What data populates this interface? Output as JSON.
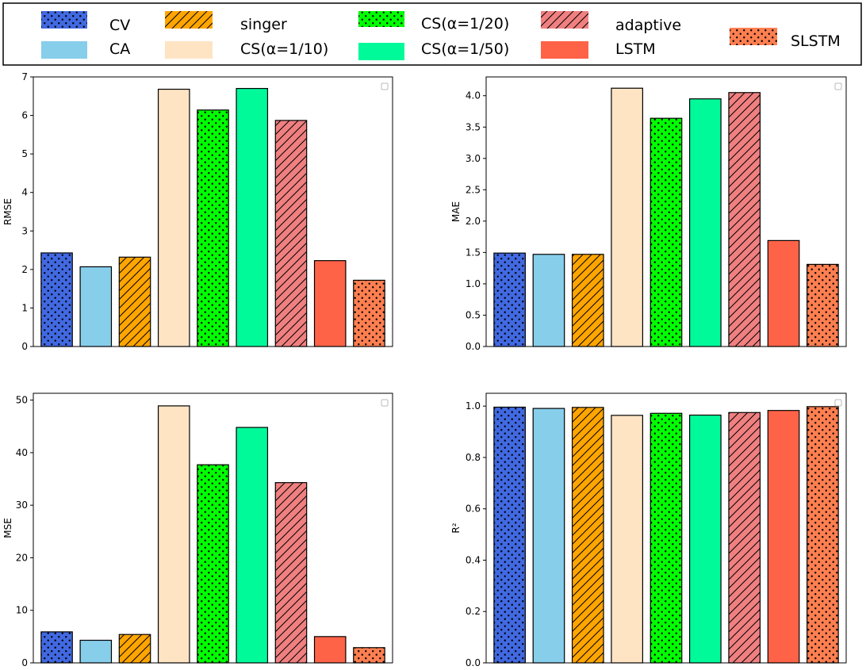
{
  "legend": {
    "items": [
      {
        "label": "CV",
        "color": "#4169E1",
        "pattern": "dots"
      },
      {
        "label": "CA",
        "color": "#87CEEB",
        "pattern": "none"
      },
      {
        "label": "singer",
        "color": "#FFA500",
        "pattern": "hatch"
      },
      {
        "label": "CS(α=1/10)",
        "color": "#FFE4C4",
        "pattern": "none"
      },
      {
        "label": "CS(α=1/20)",
        "color": "#00FF00",
        "pattern": "dots"
      },
      {
        "label": "CS(α=1/50)",
        "color": "#00FA9A",
        "pattern": "none"
      },
      {
        "label": "adaptive",
        "color": "#F08080",
        "pattern": "hatch"
      },
      {
        "label": "LSTM",
        "color": "#FF6347",
        "pattern": "none"
      },
      {
        "label": "SLSTM",
        "color": "#FF7F50",
        "pattern": "dots"
      }
    ]
  },
  "chart_data": [
    {
      "type": "bar",
      "categories": [
        "CV",
        "CA",
        "singer",
        "CS(α=1/10)",
        "CS(α=1/20)",
        "CS(α=1/50)",
        "adaptive",
        "LSTM",
        "SLSTM"
      ],
      "values": [
        2.43,
        2.07,
        2.32,
        6.68,
        6.14,
        6.7,
        5.87,
        2.23,
        1.72
      ],
      "ylabel": "RMSE",
      "ylim": [
        0,
        7.0
      ],
      "yticks": [
        "0",
        "1",
        "2",
        "3",
        "4",
        "5",
        "6",
        "7"
      ],
      "grid": false
    },
    {
      "type": "bar",
      "categories": [
        "CV",
        "CA",
        "singer",
        "CS(α=1/10)",
        "CS(α=1/20)",
        "CS(α=1/50)",
        "adaptive",
        "LSTM",
        "SLSTM"
      ],
      "values": [
        1.49,
        1.47,
        1.47,
        4.12,
        3.64,
        3.95,
        4.05,
        1.69,
        1.31
      ],
      "ylabel": "MAE",
      "ylim": [
        0,
        4.3
      ],
      "yticks": [
        "0.0",
        "0.5",
        "1.0",
        "1.5",
        "2.0",
        "2.5",
        "3.0",
        "3.5",
        "4.0"
      ],
      "grid": false
    },
    {
      "type": "bar",
      "categories": [
        "CV",
        "CA",
        "singer",
        "CS(α=1/10)",
        "CS(α=1/20)",
        "CS(α=1/50)",
        "adaptive",
        "LSTM",
        "SLSTM"
      ],
      "values": [
        5.9,
        4.3,
        5.4,
        48.9,
        37.7,
        44.8,
        34.3,
        5.0,
        2.9
      ],
      "ylabel": "MSE",
      "ylim": [
        0,
        51.3
      ],
      "yticks": [
        "0",
        "10",
        "20",
        "30",
        "40",
        "50"
      ],
      "grid": false
    },
    {
      "type": "bar",
      "categories": [
        "CV",
        "CA",
        "singer",
        "CS(α=1/10)",
        "CS(α=1/20)",
        "CS(α=1/50)",
        "adaptive",
        "LSTM",
        "SLSTM"
      ],
      "values": [
        0.996,
        0.991,
        0.995,
        0.964,
        0.972,
        0.965,
        0.975,
        0.983,
        0.998
      ],
      "ylabel": "R²",
      "ylim": [
        0,
        1.05
      ],
      "yticks": [
        "0.0",
        "0.2",
        "0.4",
        "0.6",
        "0.8",
        "1.0"
      ],
      "grid": false
    }
  ]
}
